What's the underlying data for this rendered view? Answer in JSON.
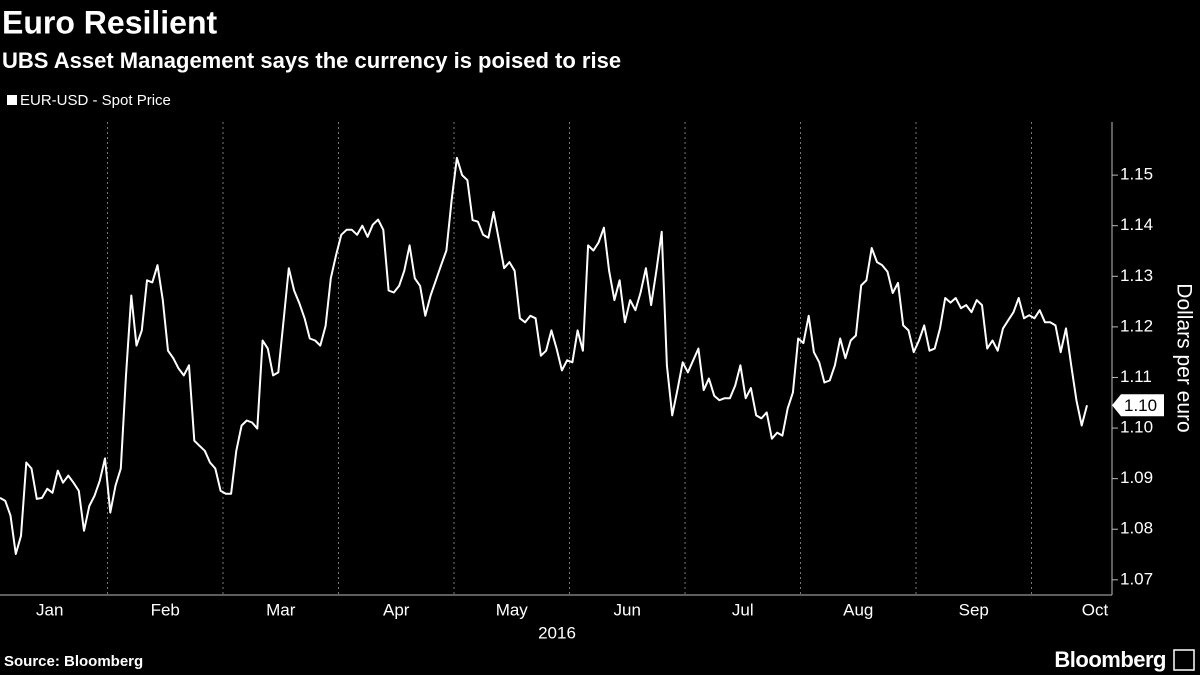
{
  "chart_data": {
    "type": "line",
    "title": "Euro Resilient",
    "subtitle": "UBS Asset Management says the currency is poised to rise",
    "y_label": "Dollars per euro",
    "months": [
      "Jan",
      "Feb",
      "Mar",
      "Apr",
      "May",
      "Jun",
      "Jul",
      "Aug",
      "Sep",
      "Oct"
    ],
    "year": "2016",
    "source": "Source: Bloomberg",
    "brand": "Bloomberg",
    "last_price_label": "1.10",
    "ylim": [
      1.067,
      1.1605
    ],
    "yticks": [
      1.07,
      1.08,
      1.09,
      {
        "value": 1.1,
        "label": "1.10"
      },
      1.11,
      1.12,
      1.13,
      1.14,
      1.15
    ],
    "series": [
      {
        "name": "EUR-USD - Spot Price",
        "color": "#ffffff",
        "values": [
          1.0862,
          1.0856,
          1.0827,
          1.0751,
          1.0787,
          1.0932,
          1.092,
          1.086,
          1.0862,
          1.088,
          1.0872,
          1.0916,
          1.0892,
          1.0906,
          1.0892,
          1.0876,
          1.0797,
          1.0846,
          1.0866,
          1.0896,
          1.094,
          1.0833,
          1.0886,
          1.092,
          1.1104,
          1.1262,
          1.1163,
          1.1193,
          1.1292,
          1.1288,
          1.1322,
          1.1253,
          1.1153,
          1.1138,
          1.1118,
          1.1104,
          1.1124,
          1.0975,
          1.0965,
          1.0955,
          1.0932,
          1.092,
          1.0876,
          1.087,
          1.087,
          1.0955,
          1.1005,
          1.1015,
          1.1011,
          1.0999,
          1.1173,
          1.1157,
          1.1104,
          1.111,
          1.1213,
          1.1316,
          1.1272,
          1.1247,
          1.1217,
          1.1177,
          1.1173,
          1.1163,
          1.1202,
          1.1296,
          1.1342,
          1.1382,
          1.1392,
          1.1392,
          1.1382,
          1.14,
          1.1378,
          1.1402,
          1.1412,
          1.1392,
          1.1272,
          1.1268,
          1.1281,
          1.1311,
          1.1361,
          1.1296,
          1.1281,
          1.1222,
          1.1262,
          1.1292,
          1.1322,
          1.1351,
          1.145,
          1.1534,
          1.15,
          1.149,
          1.1411,
          1.1408,
          1.1382,
          1.1376,
          1.1427,
          1.1372,
          1.1316,
          1.1328,
          1.1311,
          1.1217,
          1.1209,
          1.1222,
          1.1217,
          1.1143,
          1.1153,
          1.1193,
          1.1157,
          1.1114,
          1.1134,
          1.113,
          1.1193,
          1.1153,
          1.1361,
          1.1351,
          1.1367,
          1.1396,
          1.1311,
          1.1253,
          1.1292,
          1.1209,
          1.1253,
          1.1233,
          1.1268,
          1.1316,
          1.1243,
          1.1311,
          1.1388,
          1.1124,
          1.1025,
          1.1075,
          1.113,
          1.111,
          1.1134,
          1.1157,
          1.1075,
          1.1098,
          1.1064,
          1.1055,
          1.1059,
          1.1059,
          1.1084,
          1.1124,
          1.1059,
          1.1079,
          1.1025,
          1.1019,
          1.1031,
          1.0979,
          1.0991,
          1.0985,
          1.1039,
          1.107,
          1.1177,
          1.1168,
          1.1222,
          1.115,
          1.113,
          1.109,
          1.1094,
          1.1124,
          1.1177,
          1.1138,
          1.1173,
          1.1183,
          1.1282,
          1.1292,
          1.1356,
          1.1328,
          1.1322,
          1.1309,
          1.1267,
          1.1287,
          1.1203,
          1.1193,
          1.115,
          1.1173,
          1.1203,
          1.1153,
          1.1157,
          1.1197,
          1.1257,
          1.1248,
          1.1257,
          1.1237,
          1.1243,
          1.1229,
          1.1253,
          1.1243,
          1.1157,
          1.1173,
          1.1153,
          1.1197,
          1.1213,
          1.1229,
          1.1257,
          1.1217,
          1.1223,
          1.1217,
          1.1233,
          1.1209,
          1.1209,
          1.1203,
          1.115,
          1.1197,
          1.1124,
          1.1054,
          1.1005,
          1.1045
        ]
      }
    ]
  }
}
